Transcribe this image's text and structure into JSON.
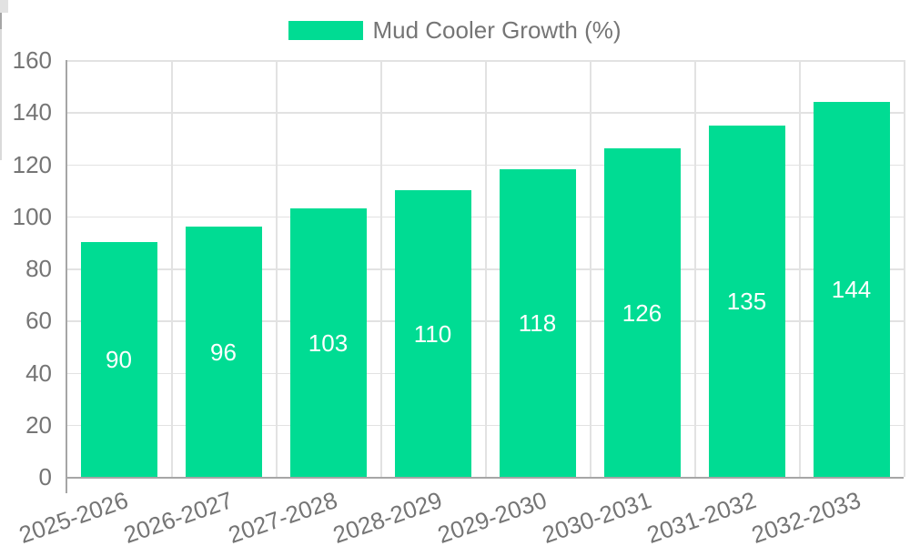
{
  "legend": {
    "items": [
      {
        "label": "Mud Cooler Growth (%)",
        "swatch_color": "#00DC93"
      }
    ]
  },
  "chart_data": {
    "type": "bar",
    "title": "Mud Cooler Growth (%)",
    "categories": [
      "2025-2026",
      "2026-2027",
      "2027-2028",
      "2028-2029",
      "2029-2030",
      "2030-2031",
      "2031-2032",
      "2032-2033"
    ],
    "series": [
      {
        "name": "Mud Cooler Growth (%)",
        "values": [
          90,
          96,
          103,
          110,
          118,
          126,
          135,
          144
        ]
      }
    ],
    "bar_labels": [
      "90",
      "96",
      "103",
      "110",
      "118",
      "126",
      "135",
      "144"
    ],
    "xlabel": "",
    "ylabel": "",
    "ylim": [
      0,
      160
    ],
    "yticks": [
      0,
      20,
      40,
      60,
      80,
      100,
      120,
      140,
      160
    ],
    "grid": true,
    "legend_position": "top",
    "bar_label_position": "center",
    "colors": {
      "bar": "#00DC93",
      "bar_label": "#ffffff",
      "axis_text": "#757575",
      "axis_line": "#a6a6a6",
      "gridline": "#e2e2e2",
      "tick": "#dadada",
      "background": "#ffffff"
    }
  }
}
